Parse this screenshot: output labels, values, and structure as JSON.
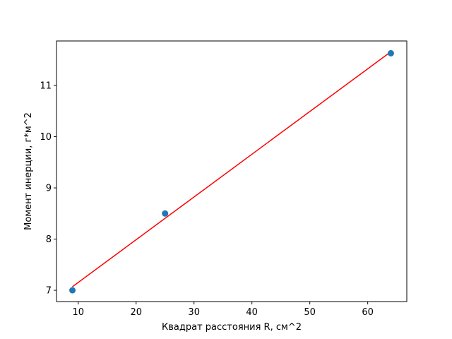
{
  "chart_data": {
    "type": "scatter",
    "title": "",
    "xlabel": "Квадрат расстояния R, см^2",
    "ylabel": "Момент инерции, г*м^2",
    "xlim": [
      6.25,
      66.75
    ],
    "ylim": [
      6.78,
      11.87
    ],
    "x_ticks": [
      10,
      20,
      30,
      40,
      50,
      60
    ],
    "y_ticks": [
      7,
      8,
      9,
      10,
      11
    ],
    "grid": false,
    "series": [
      {
        "type": "scatter",
        "x": [
          9,
          25,
          64
        ],
        "y": [
          7.0,
          8.5,
          11.63
        ],
        "color": "#1f77b4"
      },
      {
        "type": "line",
        "x": [
          9,
          64
        ],
        "y": [
          7.07,
          11.66
        ],
        "color": "#ff0000"
      }
    ]
  }
}
